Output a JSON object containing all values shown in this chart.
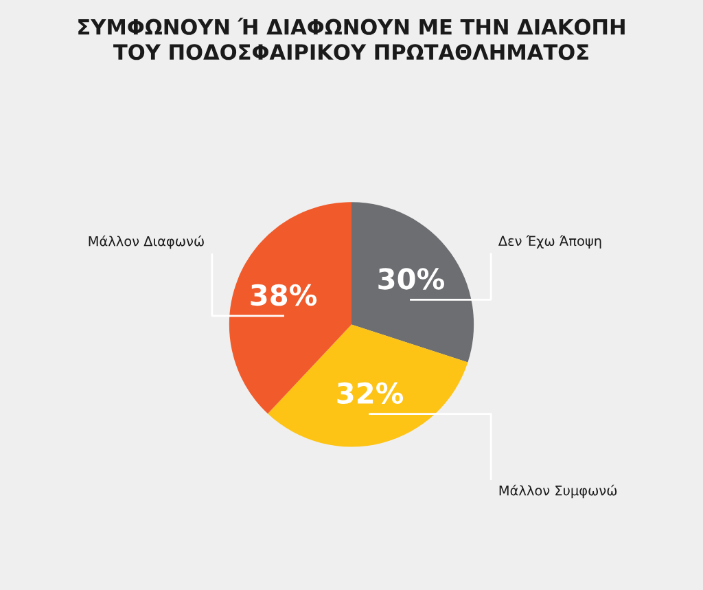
{
  "chart_data": {
    "type": "pie",
    "title": "ΣΥΜΦΩΝΟΥΝ Ή ΔΙΑΦΩΝΟΥΝ ΜΕ ΤΗΝ ΔΙΑΚΟΠΗ\nΤΟΥ ΠΟΔΟΣΦΑΙΡΙΚΟΥ ΠΡΩΤΑΘΛΗΜΑΤΟΣ",
    "categories": [
      "Δεν Έχω Άποψη",
      "Μάλλον Συμφωνώ",
      "Μάλλον Διαφωνώ"
    ],
    "values": [
      30,
      32,
      38
    ],
    "value_labels": [
      "30%",
      "32%",
      "38%"
    ],
    "colors": [
      "#6d6e71",
      "#fdc315",
      "#f15a2b"
    ],
    "legend": false
  }
}
